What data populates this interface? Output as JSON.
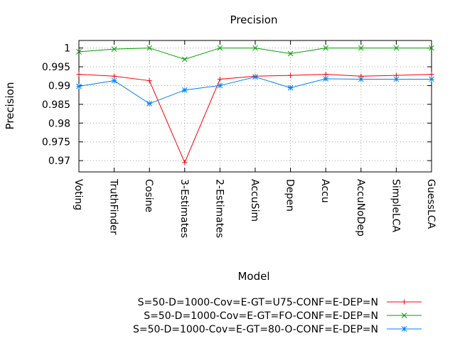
{
  "chart_data": {
    "type": "line",
    "title": "Precision",
    "xlabel": "Model",
    "ylabel": "Precision",
    "categories": [
      "Voting",
      "TruthFinder",
      "Cosine",
      "3-Estimates",
      "2-Estimates",
      "AccuSim",
      "Depen",
      "Accu",
      "AccuNoDep",
      "SimpleLCA",
      "GuessLCA"
    ],
    "ylim": [
      0.967,
      1.002
    ],
    "yticks": [
      0.97,
      0.975,
      0.98,
      0.985,
      0.99,
      0.995,
      1
    ],
    "ytick_labels": [
      "0.97",
      "0.975",
      "0.98",
      "0.985",
      "0.99",
      "0.995",
      "1"
    ],
    "grid": true,
    "legend_position": "bottom-right",
    "series": [
      {
        "name": "S=50-D=1000-Cov=E-GT=U75-CONF=E-DEP=N",
        "color": "#ff0000",
        "marker": "plus",
        "values": [
          0.993,
          0.9925,
          0.9913,
          0.9695,
          0.9917,
          0.9925,
          0.9927,
          0.993,
          0.9925,
          0.9927,
          0.993
        ]
      },
      {
        "name": "S=50-D=1000-Cov=E-GT=FO-CONF=E-DEP=N",
        "color": "#00a000",
        "marker": "cross",
        "values": [
          0.999,
          0.9997,
          1.0,
          0.997,
          1.0,
          1.0,
          0.9985,
          1.0,
          1.0,
          1.0,
          1.0
        ]
      },
      {
        "name": "S=50-D=1000-Cov=E-GT=80-O-CONF=E-DEP=N",
        "color": "#0080ff",
        "marker": "star",
        "values": [
          0.9898,
          0.9913,
          0.9852,
          0.9888,
          0.99,
          0.9923,
          0.9894,
          0.9918,
          0.9917,
          0.9917,
          0.9917
        ]
      }
    ]
  }
}
